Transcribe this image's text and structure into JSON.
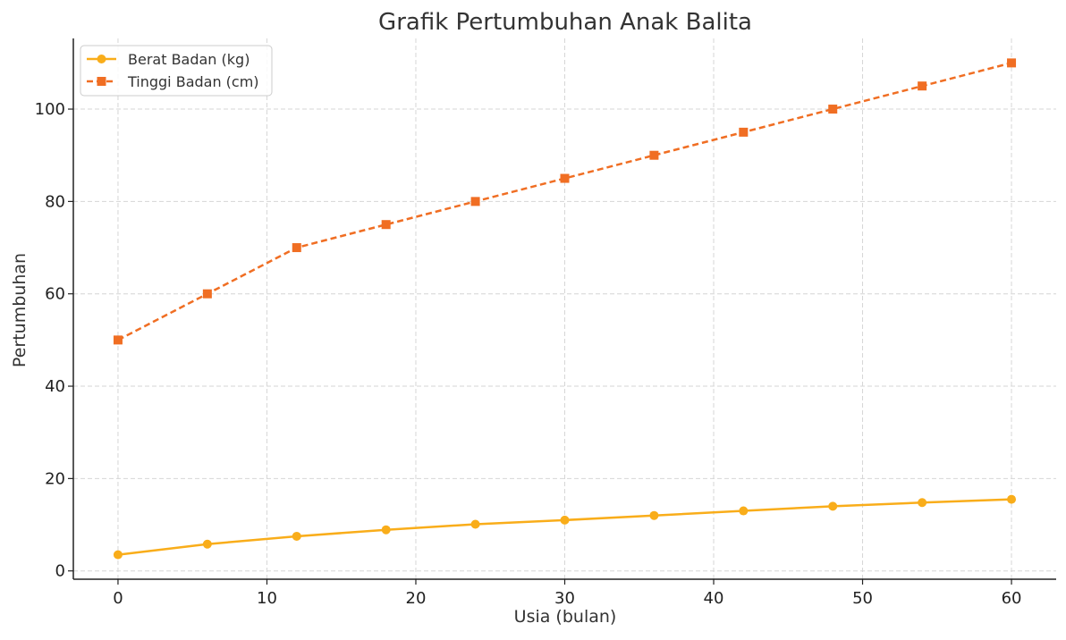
{
  "chart_data": {
    "type": "line",
    "title": "Grafik Pertumbuhan Anak Balita",
    "xlabel": "Usia (bulan)",
    "ylabel": "Pertumbuhan",
    "xlim": [
      -3,
      63
    ],
    "ylim": [
      -1.8,
      115.3
    ],
    "x_ticks": [
      0,
      10,
      20,
      30,
      40,
      50,
      60
    ],
    "y_ticks": [
      0,
      20,
      40,
      60,
      80,
      100
    ],
    "grid": true,
    "legend_position": "top-left",
    "x": [
      0,
      6,
      12,
      18,
      24,
      30,
      36,
      42,
      48,
      54,
      60
    ],
    "series": [
      {
        "name": "Berat Badan (kg)",
        "values": [
          3.5,
          5.8,
          7.5,
          8.9,
          10.1,
          11.0,
          12.0,
          13.0,
          14.0,
          14.8,
          15.5
        ],
        "color": "#F9AD1A",
        "line_style": "solid",
        "marker": "circle"
      },
      {
        "name": "Tinggi Badan (cm)",
        "values": [
          50,
          60,
          70,
          75,
          80,
          85,
          90,
          95,
          100,
          105,
          110
        ],
        "color": "#F06E23",
        "line_style": "dashed",
        "marker": "square"
      }
    ]
  }
}
